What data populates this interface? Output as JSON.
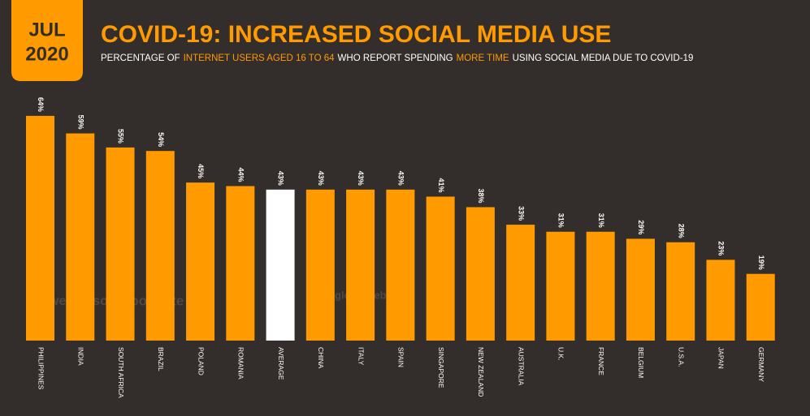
{
  "chart_data": {
    "type": "bar",
    "badge": {
      "month": "JUL",
      "year": "2020"
    },
    "title": "COVID-19: INCREASED SOCIAL MEDIA USE",
    "subtitle": [
      {
        "text": "PERCENTAGE OF",
        "highlight": false
      },
      {
        "text": "INTERNET USERS AGED 16 TO 64",
        "highlight": true
      },
      {
        "text": "WHO REPORT SPENDING",
        "highlight": false
      },
      {
        "text": "MORE TIME",
        "highlight": true
      },
      {
        "text": "USING SOCIAL MEDIA DUE TO COVID-19",
        "highlight": false
      }
    ],
    "categories": [
      "PHILIPPINES",
      "INDIA",
      "SOUTH AFRICA",
      "BRAZIL",
      "POLAND",
      "ROMANIA",
      "AVERAGE",
      "CHINA",
      "ITALY",
      "SPAIN",
      "SINGAPORE",
      "NEW ZEALAND",
      "AUSTRALIA",
      "U.K.",
      "FRANCE",
      "BELGIUM",
      "U.S.A.",
      "JAPAN",
      "GERMANY"
    ],
    "values": [
      64,
      59,
      55,
      54,
      45,
      44,
      43,
      43,
      43,
      43,
      41,
      38,
      33,
      31,
      31,
      29,
      28,
      23,
      19
    ],
    "value_labels": [
      "64%",
      "59%",
      "55%",
      "54%",
      "45%",
      "44%",
      "43%",
      "43%",
      "43%",
      "43%",
      "41%",
      "38%",
      "33%",
      "31%",
      "31%",
      "29%",
      "28%",
      "23%",
      "19%"
    ],
    "bar_colors": [
      "#ff9a00",
      "#ff9a00",
      "#ff9a00",
      "#ff9a00",
      "#ff9a00",
      "#ff9a00",
      "#ffffff",
      "#ff9a00",
      "#ff9a00",
      "#ff9a00",
      "#ff9a00",
      "#ff9a00",
      "#ff9a00",
      "#ff9a00",
      "#ff9a00",
      "#ff9a00",
      "#ff9a00",
      "#ff9a00",
      "#ff9a00"
    ],
    "watermarks": [
      "we are social",
      "Hootsuite",
      "globalwebindex"
    ]
  }
}
